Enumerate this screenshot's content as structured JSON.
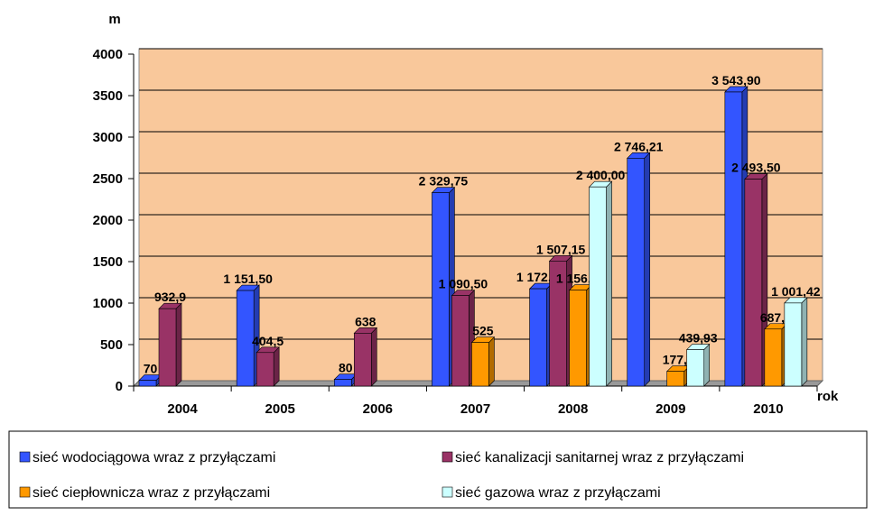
{
  "chart_data": {
    "type": "bar",
    "y_label": "m",
    "x_label": "rok",
    "categories": [
      "2004",
      "2005",
      "2006",
      "2007",
      "2008",
      "2009",
      "2010"
    ],
    "series": [
      {
        "name": "sieć wodociągowa wraz z przyłączami",
        "color": "#3355ff",
        "values": [
          70,
          1151.5,
          80,
          2329.75,
          1172.75,
          2746.21,
          3543.9
        ],
        "value_labels": [
          "70",
          "1 151,50",
          "80",
          "2 329,75",
          "1 172,75",
          "2 746,21",
          "3 543,90"
        ]
      },
      {
        "name": "sieć kanalizacji sanitarnej wraz z przyłączami",
        "color": "#993366",
        "values": [
          932.9,
          404.5,
          638,
          1090.5,
          1507.15,
          null,
          2493.5
        ],
        "value_labels": [
          "932,9",
          "404,5",
          "638",
          "1 090,50",
          "1 507,15",
          null,
          "2 493,50"
        ]
      },
      {
        "name": "sieć ciepłownicza wraz z przyłączami",
        "color": "#ff9900",
        "values": [
          null,
          null,
          null,
          525,
          1156,
          177.7,
          687.5
        ],
        "value_labels": [
          null,
          null,
          null,
          "525",
          "1 156,00",
          "177,7",
          "687,5"
        ]
      },
      {
        "name": "sieć gazowa wraz z przyłączami",
        "color": "#ccffff",
        "values": [
          null,
          null,
          null,
          null,
          2400,
          439.93,
          1001.42
        ],
        "value_labels": [
          null,
          null,
          null,
          null,
          "2 400,00",
          "439,93",
          "1 001,42"
        ]
      }
    ],
    "ylim": [
      0,
      4000
    ],
    "yticks": [
      0,
      500,
      1000,
      1500,
      2000,
      2500,
      3000,
      3500,
      4000
    ],
    "grid": true
  }
}
